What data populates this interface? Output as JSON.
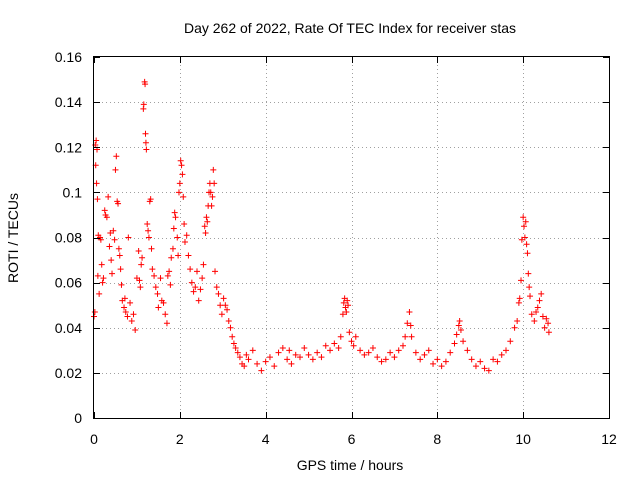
{
  "chart_data": {
    "type": "scatter",
    "title": "Day 262 of 2022, Rate Of TEC Index for receiver stas",
    "xlabel": "GPS time / hours",
    "ylabel": "ROTI / TECUs",
    "xlim": [
      0,
      12
    ],
    "ylim": [
      0,
      0.16
    ],
    "x_ticks": [
      "0",
      "2",
      "4",
      "6",
      "8",
      "10",
      "12"
    ],
    "y_ticks": [
      "0",
      "0.02",
      "0.04",
      "0.06",
      "0.08",
      "0.1",
      "0.12",
      "0.14",
      "0.16"
    ],
    "x_tick_values": [
      0,
      2,
      4,
      6,
      8,
      10,
      12
    ],
    "y_tick_values": [
      0,
      0.02,
      0.04,
      0.06,
      0.08,
      0.1,
      0.12,
      0.14,
      0.16
    ],
    "grid": true,
    "marker": "+",
    "color": "#ff0000",
    "series": [
      {
        "name": "ROTI",
        "points": [
          [
            0.0,
            0.045
          ],
          [
            0.02,
            0.047
          ],
          [
            0.03,
            0.121
          ],
          [
            0.05,
            0.123
          ],
          [
            0.06,
            0.104
          ],
          [
            0.07,
            0.119
          ],
          [
            0.08,
            0.097
          ],
          [
            0.1,
            0.081
          ],
          [
            0.04,
            0.112
          ],
          [
            0.09,
            0.063
          ],
          [
            0.12,
            0.055
          ],
          [
            0.14,
            0.08
          ],
          [
            0.16,
            0.079
          ],
          [
            0.18,
            0.068
          ],
          [
            0.2,
            0.06
          ],
          [
            0.22,
            0.062
          ],
          [
            0.25,
            0.092
          ],
          [
            0.27,
            0.09
          ],
          [
            0.3,
            0.089
          ],
          [
            0.33,
            0.098
          ],
          [
            0.36,
            0.076
          ],
          [
            0.38,
            0.082
          ],
          [
            0.4,
            0.07
          ],
          [
            0.42,
            0.064
          ],
          [
            0.45,
            0.083
          ],
          [
            0.48,
            0.079
          ],
          [
            0.5,
            0.11
          ],
          [
            0.52,
            0.116
          ],
          [
            0.54,
            0.096
          ],
          [
            0.56,
            0.095
          ],
          [
            0.58,
            0.075
          ],
          [
            0.6,
            0.072
          ],
          [
            0.62,
            0.066
          ],
          [
            0.64,
            0.059
          ],
          [
            0.66,
            0.052
          ],
          [
            0.7,
            0.049
          ],
          [
            0.72,
            0.053
          ],
          [
            0.74,
            0.047
          ],
          [
            0.78,
            0.045
          ],
          [
            0.8,
            0.08
          ],
          [
            0.84,
            0.051
          ],
          [
            0.88,
            0.043
          ],
          [
            0.92,
            0.046
          ],
          [
            0.96,
            0.039
          ],
          [
            1.0,
            0.062
          ],
          [
            1.04,
            0.074
          ],
          [
            1.06,
            0.061
          ],
          [
            1.08,
            0.058
          ],
          [
            1.1,
            0.068
          ],
          [
            1.12,
            0.071
          ],
          [
            1.15,
            0.137
          ],
          [
            1.16,
            0.139
          ],
          [
            1.18,
            0.149
          ],
          [
            1.19,
            0.148
          ],
          [
            1.2,
            0.126
          ],
          [
            1.21,
            0.122
          ],
          [
            1.22,
            0.119
          ],
          [
            1.24,
            0.086
          ],
          [
            1.26,
            0.083
          ],
          [
            1.28,
            0.08
          ],
          [
            1.3,
            0.096
          ],
          [
            1.32,
            0.097
          ],
          [
            1.34,
            0.075
          ],
          [
            1.36,
            0.066
          ],
          [
            1.4,
            0.063
          ],
          [
            1.44,
            0.058
          ],
          [
            1.48,
            0.055
          ],
          [
            1.5,
            0.049
          ],
          [
            1.55,
            0.062
          ],
          [
            1.58,
            0.052
          ],
          [
            1.62,
            0.051
          ],
          [
            1.66,
            0.046
          ],
          [
            1.7,
            0.042
          ],
          [
            1.72,
            0.063
          ],
          [
            1.75,
            0.065
          ],
          [
            1.78,
            0.059
          ],
          [
            1.8,
            0.071
          ],
          [
            1.84,
            0.075
          ],
          [
            1.86,
            0.084
          ],
          [
            1.88,
            0.091
          ],
          [
            1.9,
            0.089
          ],
          [
            1.94,
            0.08
          ],
          [
            1.96,
            0.072
          ],
          [
            1.98,
            0.1
          ],
          [
            2.0,
            0.104
          ],
          [
            2.02,
            0.114
          ],
          [
            2.04,
            0.112
          ],
          [
            2.06,
            0.108
          ],
          [
            2.08,
            0.098
          ],
          [
            2.1,
            0.086
          ],
          [
            2.12,
            0.078
          ],
          [
            2.16,
            0.081
          ],
          [
            2.2,
            0.072
          ],
          [
            2.24,
            0.066
          ],
          [
            2.28,
            0.06
          ],
          [
            2.32,
            0.056
          ],
          [
            2.36,
            0.058
          ],
          [
            2.4,
            0.065
          ],
          [
            2.44,
            0.052
          ],
          [
            2.48,
            0.057
          ],
          [
            2.52,
            0.062
          ],
          [
            2.55,
            0.068
          ],
          [
            2.58,
            0.085
          ],
          [
            2.6,
            0.082
          ],
          [
            2.62,
            0.089
          ],
          [
            2.64,
            0.087
          ],
          [
            2.66,
            0.094
          ],
          [
            2.68,
            0.1
          ],
          [
            2.7,
            0.104
          ],
          [
            2.72,
            0.1
          ],
          [
            2.74,
            0.094
          ],
          [
            2.76,
            0.098
          ],
          [
            2.78,
            0.11
          ],
          [
            2.8,
            0.104
          ],
          [
            2.82,
            0.065
          ],
          [
            2.86,
            0.058
          ],
          [
            2.9,
            0.055
          ],
          [
            2.94,
            0.05
          ],
          [
            2.98,
            0.046
          ],
          [
            3.02,
            0.053
          ],
          [
            3.06,
            0.05
          ],
          [
            3.1,
            0.048
          ],
          [
            3.14,
            0.043
          ],
          [
            3.18,
            0.04
          ],
          [
            3.22,
            0.036
          ],
          [
            3.26,
            0.033
          ],
          [
            3.3,
            0.031
          ],
          [
            3.35,
            0.029
          ],
          [
            3.4,
            0.027
          ],
          [
            3.45,
            0.024
          ],
          [
            3.5,
            0.023
          ],
          [
            3.55,
            0.028
          ],
          [
            3.6,
            0.026
          ],
          [
            3.7,
            0.03
          ],
          [
            3.8,
            0.024
          ],
          [
            3.9,
            0.021
          ],
          [
            4.0,
            0.025
          ],
          [
            4.1,
            0.027
          ],
          [
            4.2,
            0.023
          ],
          [
            4.3,
            0.029
          ],
          [
            4.4,
            0.031
          ],
          [
            4.5,
            0.026
          ],
          [
            4.55,
            0.03
          ],
          [
            4.6,
            0.024
          ],
          [
            4.7,
            0.028
          ],
          [
            4.8,
            0.027
          ],
          [
            4.9,
            0.031
          ],
          [
            5.0,
            0.028
          ],
          [
            5.1,
            0.026
          ],
          [
            5.2,
            0.029
          ],
          [
            5.3,
            0.027
          ],
          [
            5.4,
            0.032
          ],
          [
            5.5,
            0.03
          ],
          [
            5.6,
            0.033
          ],
          [
            5.7,
            0.031
          ],
          [
            5.75,
            0.036
          ],
          [
            5.8,
            0.046
          ],
          [
            5.82,
            0.051
          ],
          [
            5.84,
            0.053
          ],
          [
            5.86,
            0.049
          ],
          [
            5.88,
            0.047
          ],
          [
            5.9,
            0.052
          ],
          [
            5.92,
            0.05
          ],
          [
            5.95,
            0.038
          ],
          [
            6.0,
            0.034
          ],
          [
            6.05,
            0.032
          ],
          [
            6.1,
            0.036
          ],
          [
            6.2,
            0.03
          ],
          [
            6.3,
            0.028
          ],
          [
            6.4,
            0.029
          ],
          [
            6.5,
            0.031
          ],
          [
            6.6,
            0.027
          ],
          [
            6.7,
            0.025
          ],
          [
            6.8,
            0.026
          ],
          [
            6.9,
            0.029
          ],
          [
            7.0,
            0.027
          ],
          [
            7.1,
            0.03
          ],
          [
            7.2,
            0.032
          ],
          [
            7.25,
            0.036
          ],
          [
            7.3,
            0.042
          ],
          [
            7.35,
            0.047
          ],
          [
            7.38,
            0.041
          ],
          [
            7.4,
            0.036
          ],
          [
            7.5,
            0.029
          ],
          [
            7.6,
            0.026
          ],
          [
            7.7,
            0.028
          ],
          [
            7.8,
            0.03
          ],
          [
            7.9,
            0.024
          ],
          [
            8.0,
            0.026
          ],
          [
            8.1,
            0.023
          ],
          [
            8.2,
            0.025
          ],
          [
            8.3,
            0.029
          ],
          [
            8.4,
            0.033
          ],
          [
            8.45,
            0.037
          ],
          [
            8.5,
            0.041
          ],
          [
            8.52,
            0.043
          ],
          [
            8.55,
            0.039
          ],
          [
            8.6,
            0.034
          ],
          [
            8.7,
            0.03
          ],
          [
            8.8,
            0.026
          ],
          [
            8.9,
            0.023
          ],
          [
            9.0,
            0.025
          ],
          [
            9.1,
            0.022
          ],
          [
            9.2,
            0.021
          ],
          [
            9.3,
            0.026
          ],
          [
            9.4,
            0.025
          ],
          [
            9.5,
            0.028
          ],
          [
            9.6,
            0.03
          ],
          [
            9.7,
            0.034
          ],
          [
            9.8,
            0.04
          ],
          [
            9.86,
            0.043
          ],
          [
            9.9,
            0.051
          ],
          [
            9.92,
            0.053
          ],
          [
            9.95,
            0.061
          ],
          [
            9.97,
            0.079
          ],
          [
            10.0,
            0.089
          ],
          [
            10.02,
            0.085
          ],
          [
            10.04,
            0.08
          ],
          [
            10.06,
            0.087
          ],
          [
            10.08,
            0.077
          ],
          [
            10.1,
            0.073
          ],
          [
            10.12,
            0.064
          ],
          [
            10.14,
            0.058
          ],
          [
            10.16,
            0.054
          ],
          [
            10.2,
            0.046
          ],
          [
            10.26,
            0.043
          ],
          [
            10.3,
            0.047
          ],
          [
            10.34,
            0.049
          ],
          [
            10.38,
            0.052
          ],
          [
            10.42,
            0.055
          ],
          [
            10.46,
            0.045
          ],
          [
            10.5,
            0.04
          ],
          [
            10.54,
            0.044
          ],
          [
            10.58,
            0.042
          ],
          [
            10.6,
            0.038
          ]
        ]
      }
    ]
  }
}
